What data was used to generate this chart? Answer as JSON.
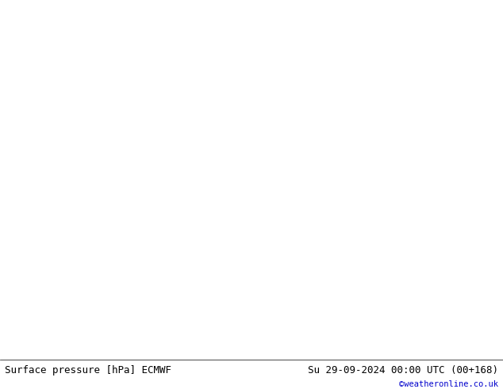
{
  "title_left": "Surface pressure [hPa] ECMWF",
  "title_right": "Su 29-09-2024 00:00 UTC (00+168)",
  "copyright": "©weatheronline.co.uk",
  "background_color": "#d8d8d8",
  "land_color": "#c8e6a0",
  "coast_color": "#808080",
  "sea_color": "#d8d8d8",
  "text_color_black": "#000000",
  "text_color_blue": "#0000cc",
  "text_color_red": "#cc0000",
  "isobar_colors": {
    "1008": "#0000cc",
    "1016": "#000000",
    "1020": "#cc0000",
    "1024": "#cc0000",
    "1028": "#cc0000"
  },
  "lon_min": -14,
  "lon_max": 20,
  "lat_min": 42,
  "lat_max": 63,
  "figsize": [
    6.34,
    4.9
  ],
  "dpi": 100
}
